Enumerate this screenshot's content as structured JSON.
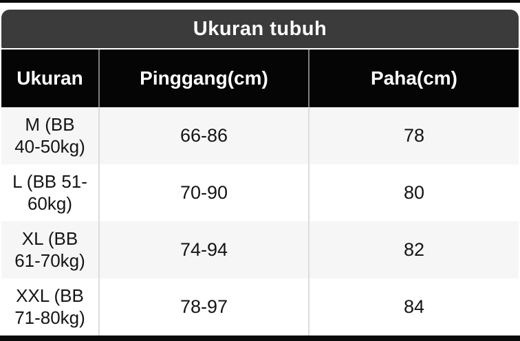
{
  "title": "Ukuran tubuh",
  "columns": [
    "Ukuran",
    "Pinggang(cm)",
    "Paha(cm)"
  ],
  "rows": [
    {
      "size": "M (BB\n40-50kg)",
      "pinggang": "66-86",
      "paha": "78"
    },
    {
      "size": "L (BB 51-\n60kg)",
      "pinggang": "70-90",
      "paha": "80"
    },
    {
      "size": "XL (BB\n61-70kg)",
      "pinggang": "74-94",
      "paha": "82"
    },
    {
      "size": "XXL (BB\n71-80kg)",
      "pinggang": "78-97",
      "paha": "84"
    }
  ],
  "colors": {
    "title_bar_bg": "#3b3b3b",
    "header_bg": "#050505",
    "header_text": "#ffffff",
    "row_bg": "#ffffff",
    "row_alt_bg": "#f6f6f6",
    "body_text": "#141414",
    "divider_header": "#808080",
    "divider_body": "#dcdcdc",
    "frame_strip": "#0a0a0a"
  },
  "chart_data": {
    "type": "table",
    "title": "Ukuran tubuh",
    "columns": [
      "Ukuran",
      "Pinggang(cm)",
      "Paha(cm)"
    ],
    "rows": [
      [
        "M (BB 40-50kg)",
        "66-86",
        "78"
      ],
      [
        "L (BB 51-60kg)",
        "70-90",
        "80"
      ],
      [
        "XL (BB 61-70kg)",
        "74-94",
        "82"
      ],
      [
        "XXL (BB 71-80kg)",
        "78-97",
        "84"
      ]
    ]
  }
}
